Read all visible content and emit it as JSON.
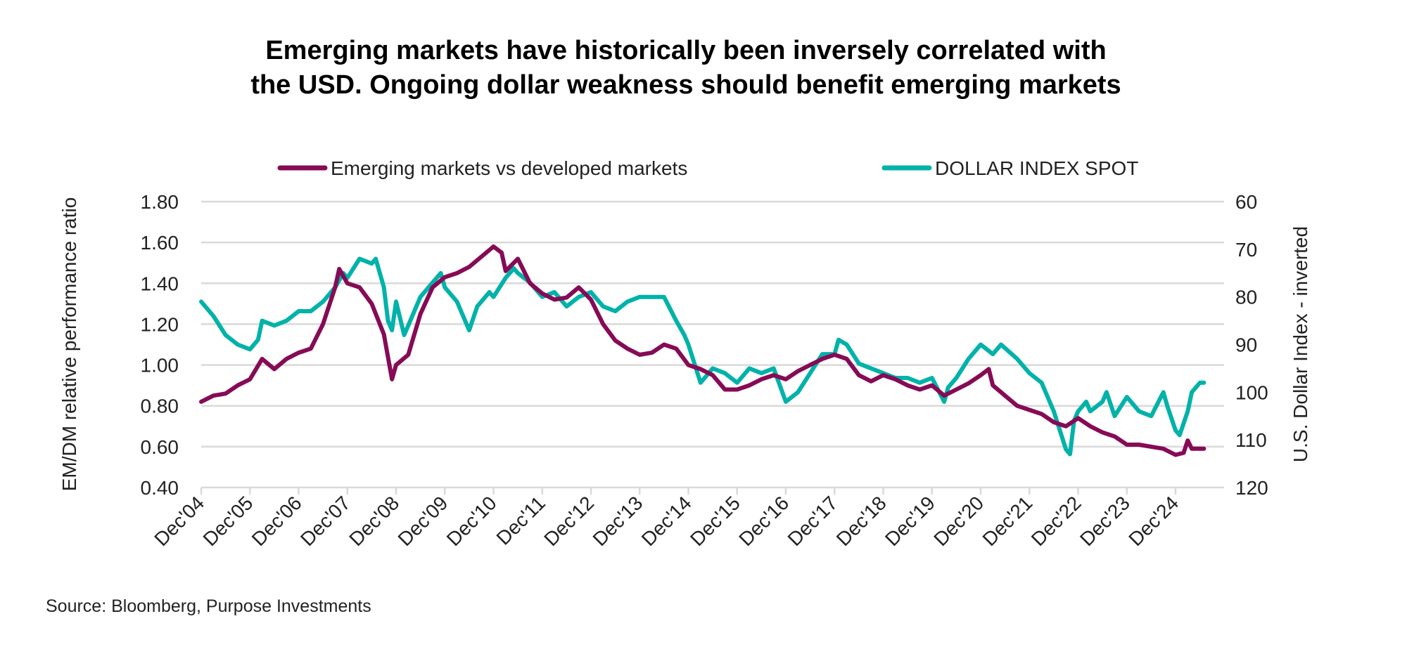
{
  "chart_data": {
    "type": "line",
    "title": [
      "Emerging markets have historically been inversely correlated with",
      "the USD. Ongoing dollar weakness should benefit emerging markets"
    ],
    "source": "Source: Bloomberg, Purpose Investments",
    "ylabel": "EM/DM relative performance ratio",
    "y2label": "U.S. Dollar Index - inverted",
    "ylim": [
      0.4,
      1.8
    ],
    "yticks": [
      "1.80",
      "1.60",
      "1.40",
      "1.20",
      "1.00",
      "0.80",
      "0.60",
      "0.40"
    ],
    "y2lim": [
      60,
      120
    ],
    "y2_inverted": true,
    "y2ticks": [
      "60",
      "70",
      "80",
      "90",
      "100",
      "110",
      "120"
    ],
    "xlim": [
      "2004-12",
      "2025-07"
    ],
    "xticks": [
      "Dec'04",
      "Dec'05",
      "Dec'06",
      "Dec'07",
      "Dec'08",
      "Dec'09",
      "Dec'10",
      "Dec'11",
      "Dec'12",
      "Dec'13",
      "Dec'14",
      "Dec'15",
      "Dec'16",
      "Dec'17",
      "Dec'18",
      "Dec'19",
      "Dec'20",
      "Dec'21",
      "Dec'22",
      "Dec'23",
      "Dec'24"
    ],
    "grid": true,
    "legend_position": "top",
    "series": [
      {
        "name": "Emerging markets vs developed markets",
        "axis": "left",
        "color": "#860b56",
        "points": [
          [
            "2004-12",
            0.82
          ],
          [
            "2005-03",
            0.85
          ],
          [
            "2005-06",
            0.86
          ],
          [
            "2005-09",
            0.9
          ],
          [
            "2005-12",
            0.93
          ],
          [
            "2006-03",
            1.03
          ],
          [
            "2006-06",
            0.98
          ],
          [
            "2006-09",
            1.03
          ],
          [
            "2006-12",
            1.06
          ],
          [
            "2007-03",
            1.08
          ],
          [
            "2007-06",
            1.2
          ],
          [
            "2007-09",
            1.38
          ],
          [
            "2007-10",
            1.47
          ],
          [
            "2007-12",
            1.4
          ],
          [
            "2008-03",
            1.38
          ],
          [
            "2008-06",
            1.3
          ],
          [
            "2008-09",
            1.15
          ],
          [
            "2008-11",
            0.93
          ],
          [
            "2008-12",
            1.0
          ],
          [
            "2009-03",
            1.05
          ],
          [
            "2009-06",
            1.25
          ],
          [
            "2009-09",
            1.38
          ],
          [
            "2009-12",
            1.43
          ],
          [
            "2010-03",
            1.45
          ],
          [
            "2010-06",
            1.48
          ],
          [
            "2010-09",
            1.53
          ],
          [
            "2010-12",
            1.58
          ],
          [
            "2011-02",
            1.55
          ],
          [
            "2011-03",
            1.46
          ],
          [
            "2011-06",
            1.52
          ],
          [
            "2011-09",
            1.4
          ],
          [
            "2011-12",
            1.35
          ],
          [
            "2012-03",
            1.32
          ],
          [
            "2012-06",
            1.33
          ],
          [
            "2012-09",
            1.38
          ],
          [
            "2012-12",
            1.32
          ],
          [
            "2013-03",
            1.2
          ],
          [
            "2013-06",
            1.12
          ],
          [
            "2013-09",
            1.08
          ],
          [
            "2013-12",
            1.05
          ],
          [
            "2014-03",
            1.06
          ],
          [
            "2014-06",
            1.1
          ],
          [
            "2014-09",
            1.08
          ],
          [
            "2014-12",
            1.0
          ],
          [
            "2015-03",
            0.98
          ],
          [
            "2015-06",
            0.95
          ],
          [
            "2015-09",
            0.88
          ],
          [
            "2015-12",
            0.88
          ],
          [
            "2016-03",
            0.9
          ],
          [
            "2016-06",
            0.93
          ],
          [
            "2016-09",
            0.95
          ],
          [
            "2016-12",
            0.93
          ],
          [
            "2017-03",
            0.97
          ],
          [
            "2017-06",
            1.0
          ],
          [
            "2017-09",
            1.03
          ],
          [
            "2017-12",
            1.05
          ],
          [
            "2018-03",
            1.03
          ],
          [
            "2018-06",
            0.95
          ],
          [
            "2018-09",
            0.92
          ],
          [
            "2018-12",
            0.95
          ],
          [
            "2019-03",
            0.93
          ],
          [
            "2019-06",
            0.9
          ],
          [
            "2019-09",
            0.88
          ],
          [
            "2019-12",
            0.9
          ],
          [
            "2020-03",
            0.85
          ],
          [
            "2020-06",
            0.88
          ],
          [
            "2020-09",
            0.91
          ],
          [
            "2020-12",
            0.95
          ],
          [
            "2021-02",
            0.98
          ],
          [
            "2021-03",
            0.9
          ],
          [
            "2021-06",
            0.85
          ],
          [
            "2021-09",
            0.8
          ],
          [
            "2021-12",
            0.78
          ],
          [
            "2022-03",
            0.76
          ],
          [
            "2022-06",
            0.72
          ],
          [
            "2022-09",
            0.7
          ],
          [
            "2022-12",
            0.74
          ],
          [
            "2023-03",
            0.7
          ],
          [
            "2023-06",
            0.67
          ],
          [
            "2023-09",
            0.65
          ],
          [
            "2023-12",
            0.61
          ],
          [
            "2024-03",
            0.61
          ],
          [
            "2024-06",
            0.6
          ],
          [
            "2024-09",
            0.59
          ],
          [
            "2024-12",
            0.56
          ],
          [
            "2025-02",
            0.57
          ],
          [
            "2025-03",
            0.63
          ],
          [
            "2025-04",
            0.59
          ],
          [
            "2025-07",
            0.59
          ]
        ]
      },
      {
        "name": "DOLLAR INDEX SPOT",
        "axis": "right",
        "color": "#00b2a9",
        "points": [
          [
            "2004-12",
            81
          ],
          [
            "2005-03",
            84
          ],
          [
            "2005-06",
            88
          ],
          [
            "2005-09",
            90
          ],
          [
            "2005-12",
            91
          ],
          [
            "2006-02",
            89
          ],
          [
            "2006-03",
            85
          ],
          [
            "2006-06",
            86
          ],
          [
            "2006-09",
            85
          ],
          [
            "2006-12",
            83
          ],
          [
            "2007-03",
            83
          ],
          [
            "2007-06",
            81
          ],
          [
            "2007-09",
            78
          ],
          [
            "2007-11",
            75
          ],
          [
            "2007-12",
            76
          ],
          [
            "2008-03",
            72
          ],
          [
            "2008-06",
            73
          ],
          [
            "2008-07",
            72
          ],
          [
            "2008-09",
            78
          ],
          [
            "2008-10",
            85
          ],
          [
            "2008-11",
            87
          ],
          [
            "2008-12",
            81
          ],
          [
            "2009-02",
            88
          ],
          [
            "2009-03",
            86
          ],
          [
            "2009-06",
            80
          ],
          [
            "2009-09",
            77
          ],
          [
            "2009-11",
            75
          ],
          [
            "2009-12",
            78
          ],
          [
            "2010-03",
            81
          ],
          [
            "2010-06",
            87
          ],
          [
            "2010-08",
            82
          ],
          [
            "2010-11",
            79
          ],
          [
            "2010-12",
            80
          ],
          [
            "2011-03",
            76
          ],
          [
            "2011-05",
            74
          ],
          [
            "2011-06",
            75
          ],
          [
            "2011-09",
            77
          ],
          [
            "2011-12",
            80
          ],
          [
            "2012-03",
            79
          ],
          [
            "2012-06",
            82
          ],
          [
            "2012-09",
            80
          ],
          [
            "2012-12",
            79
          ],
          [
            "2013-03",
            82
          ],
          [
            "2013-06",
            83
          ],
          [
            "2013-09",
            81
          ],
          [
            "2013-12",
            80
          ],
          [
            "2014-03",
            80
          ],
          [
            "2014-06",
            80
          ],
          [
            "2014-09",
            85
          ],
          [
            "2014-11",
            88
          ],
          [
            "2014-12",
            90
          ],
          [
            "2015-03",
            98
          ],
          [
            "2015-06",
            95
          ],
          [
            "2015-09",
            96
          ],
          [
            "2015-12",
            98
          ],
          [
            "2016-03",
            95
          ],
          [
            "2016-06",
            96
          ],
          [
            "2016-09",
            95
          ],
          [
            "2016-12",
            102
          ],
          [
            "2017-03",
            100
          ],
          [
            "2017-06",
            96
          ],
          [
            "2017-09",
            92
          ],
          [
            "2017-12",
            92
          ],
          [
            "2018-01",
            89
          ],
          [
            "2018-03",
            90
          ],
          [
            "2018-06",
            94
          ],
          [
            "2018-09",
            95
          ],
          [
            "2018-12",
            96
          ],
          [
            "2019-03",
            97
          ],
          [
            "2019-06",
            97
          ],
          [
            "2019-09",
            98
          ],
          [
            "2019-12",
            97
          ],
          [
            "2020-03",
            102
          ],
          [
            "2020-04",
            99
          ],
          [
            "2020-06",
            97
          ],
          [
            "2020-09",
            93
          ],
          [
            "2020-12",
            90
          ],
          [
            "2021-03",
            92
          ],
          [
            "2021-05",
            90
          ],
          [
            "2021-09",
            93
          ],
          [
            "2021-12",
            96
          ],
          [
            "2022-03",
            98
          ],
          [
            "2022-06",
            104
          ],
          [
            "2022-09",
            112
          ],
          [
            "2022-10",
            113
          ],
          [
            "2022-11",
            106
          ],
          [
            "2022-12",
            104
          ],
          [
            "2023-02",
            102
          ],
          [
            "2023-03",
            104
          ],
          [
            "2023-06",
            102
          ],
          [
            "2023-07",
            100
          ],
          [
            "2023-09",
            105
          ],
          [
            "2023-12",
            101
          ],
          [
            "2024-03",
            104
          ],
          [
            "2024-06",
            105
          ],
          [
            "2024-09",
            100
          ],
          [
            "2024-10",
            103
          ],
          [
            "2024-12",
            108
          ],
          [
            "2025-01",
            109
          ],
          [
            "2025-03",
            104
          ],
          [
            "2025-04",
            100
          ],
          [
            "2025-06",
            98
          ],
          [
            "2025-07",
            98
          ]
        ]
      }
    ]
  }
}
